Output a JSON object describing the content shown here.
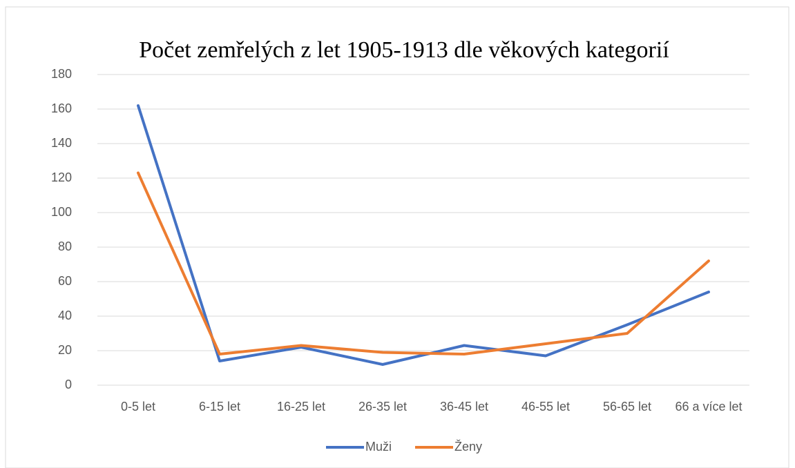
{
  "chart_data": {
    "type": "line",
    "title": "Počet zemřelých z let 1905-1913 dle věkových kategorií",
    "categories": [
      "0-5 let",
      "6-15 let",
      "16-25 let",
      "26-35 let",
      "36-45 let",
      "46-55 let",
      "56-65 let",
      "66 a více let"
    ],
    "series": [
      {
        "name": "Muži",
        "color": "#4472c4",
        "values": [
          162,
          14,
          22,
          12,
          23,
          17,
          35,
          54
        ]
      },
      {
        "name": "Ženy",
        "color": "#ed7d31",
        "values": [
          123,
          18,
          23,
          19,
          18,
          24,
          30,
          72
        ]
      }
    ],
    "ylim": [
      0,
      180
    ],
    "yticks": [
      0,
      20,
      40,
      60,
      80,
      100,
      120,
      140,
      160,
      180
    ],
    "grid": true,
    "legend": "bottom"
  }
}
